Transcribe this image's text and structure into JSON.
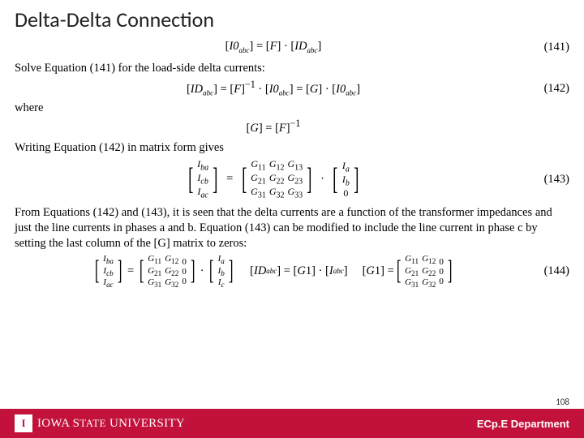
{
  "title": "Delta-Delta Connection",
  "eq141_num": "(141)",
  "para1": "Solve Equation (141) for the load-side delta currents:",
  "eq142_num": "(142)",
  "where_text": "where",
  "para2": "Writing Equation (142) in matrix form gives",
  "eq143_num": "(143)",
  "para3": "From Equations (142) and (143), it is seen that the delta currents are a function of the transformer impedances and just the line currents in phases a and b. Equation (143) can be modified to include the line current in phase c by setting the last column of the [G] matrix to zeros:",
  "eq144_num": "(144)",
  "slide_number": "108",
  "university_prefix": "IOWA",
  "university_middle": " S",
  "university_rest": "TATE",
  "university_word2": " UNIVERSITY",
  "department": "ECp.E Department",
  "colors": {
    "brand_red": "#c2113a",
    "text": "#000000",
    "title": "#222222",
    "white": "#ffffff"
  }
}
